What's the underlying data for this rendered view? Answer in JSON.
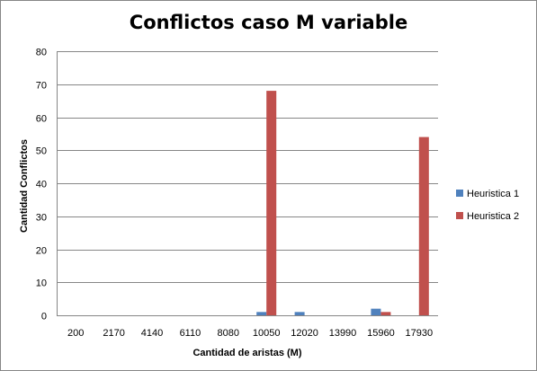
{
  "chart_data": {
    "type": "bar",
    "title": "Conflictos caso M variable",
    "xlabel": "Cantidad  de aristas  (M)",
    "ylabel": "Cantidad  Conflictos",
    "categories": [
      "200",
      "2170",
      "4140",
      "6110",
      "8080",
      "10050",
      "12020",
      "13990",
      "15960",
      "17930"
    ],
    "ylim": [
      0,
      80
    ],
    "yticks": [
      0,
      10,
      20,
      30,
      40,
      50,
      60,
      70,
      80
    ],
    "grid": true,
    "legend_position": "right",
    "series": [
      {
        "name": "Heuristica 1",
        "color": "#4F81BD",
        "values": [
          0,
          0,
          0,
          0,
          0,
          1,
          1,
          0,
          2,
          0
        ]
      },
      {
        "name": "Heuristica 2",
        "color": "#C0504D",
        "values": [
          0,
          0,
          0,
          0,
          0,
          68,
          0,
          0,
          1,
          54
        ]
      }
    ]
  }
}
